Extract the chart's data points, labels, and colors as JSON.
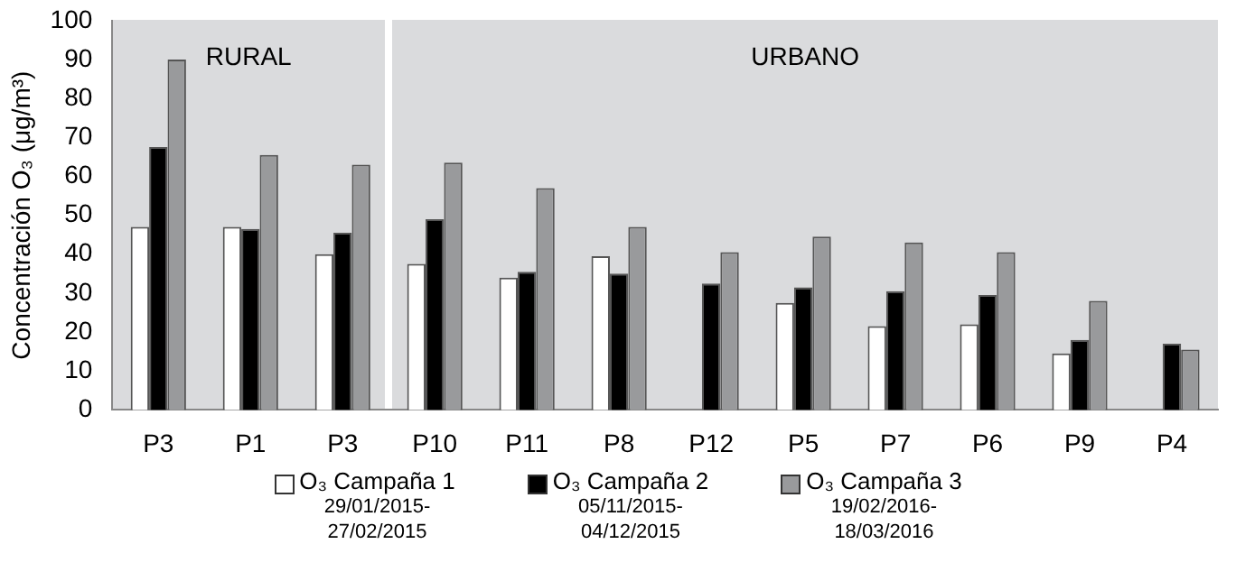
{
  "chart_data": {
    "type": "bar",
    "ylabel": "Concentración O₃ (μg/m³)",
    "categories": [
      "P3",
      "P1",
      "P3",
      "P10",
      "P11",
      "P8",
      "P12",
      "P5",
      "P7",
      "P6",
      "P9",
      "P4"
    ],
    "series": [
      {
        "name": "O₃ Campaña 1\n29/01/2015-\n27/02/2015",
        "color": "#ffffff",
        "values": [
          47,
          47,
          40,
          37.5,
          34,
          39.5,
          null,
          27.5,
          21.5,
          22,
          14.5,
          null
        ]
      },
      {
        "name": "O₃ Campaña 2\n05/11/2015-\n04/12/2015",
        "color": "#000000",
        "values": [
          67.5,
          46.5,
          45.5,
          49,
          35.5,
          35,
          32.5,
          31.5,
          30.5,
          29.5,
          18,
          17
        ]
      },
      {
        "name": "O₃ Campaña 3\n19/02/2016-\n18/03/2016",
        "color": "#999a9c",
        "values": [
          90,
          65.5,
          63,
          63.5,
          57,
          47,
          40.5,
          44.5,
          43,
          40.5,
          28,
          15.5
        ]
      }
    ],
    "ylim": [
      0,
      100
    ],
    "yticks": [
      0,
      10,
      20,
      30,
      40,
      50,
      60,
      70,
      80,
      90,
      100
    ],
    "grid": false,
    "legend": "bottom",
    "annotations": [
      "RURAL",
      "URBANO"
    ]
  }
}
